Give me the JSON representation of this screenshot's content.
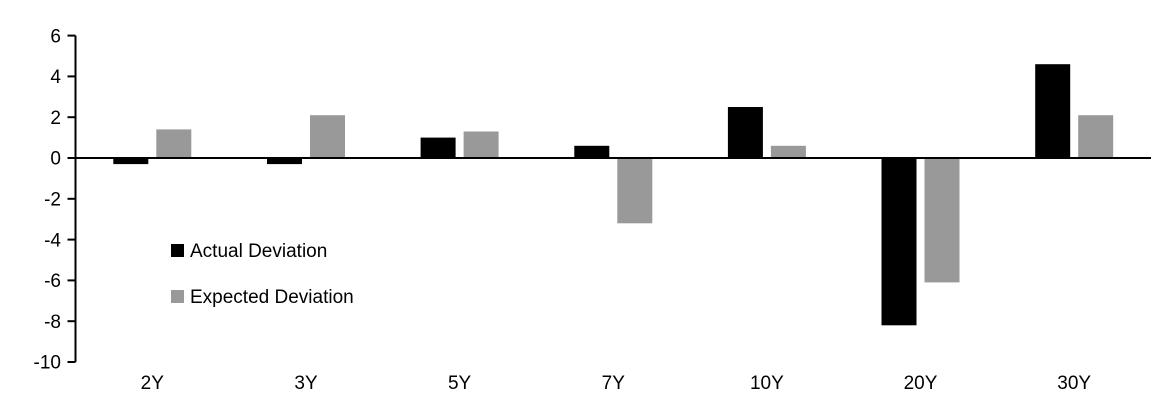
{
  "chart_data": {
    "type": "bar",
    "title": "",
    "categories": [
      "2Y",
      "3Y",
      "5Y",
      "7Y",
      "10Y",
      "20Y",
      "30Y"
    ],
    "series": [
      {
        "name": "Actual Deviation",
        "color": "#000000",
        "values": [
          -0.3,
          -0.3,
          1.0,
          0.6,
          2.5,
          -8.2,
          4.6
        ]
      },
      {
        "name": "Expected Deviation",
        "color": "#999999",
        "values": [
          1.4,
          2.1,
          1.3,
          -3.2,
          0.6,
          -6.1,
          2.1
        ]
      }
    ],
    "xlabel": "",
    "ylabel": "",
    "ylim": [
      -10,
      6
    ],
    "yticks": [
      6,
      4,
      2,
      0,
      -2,
      -4,
      -6,
      -8,
      -10
    ],
    "grid": false,
    "legend_position": "inside-left",
    "axis_color": "#000000",
    "background_color": "#ffffff"
  }
}
